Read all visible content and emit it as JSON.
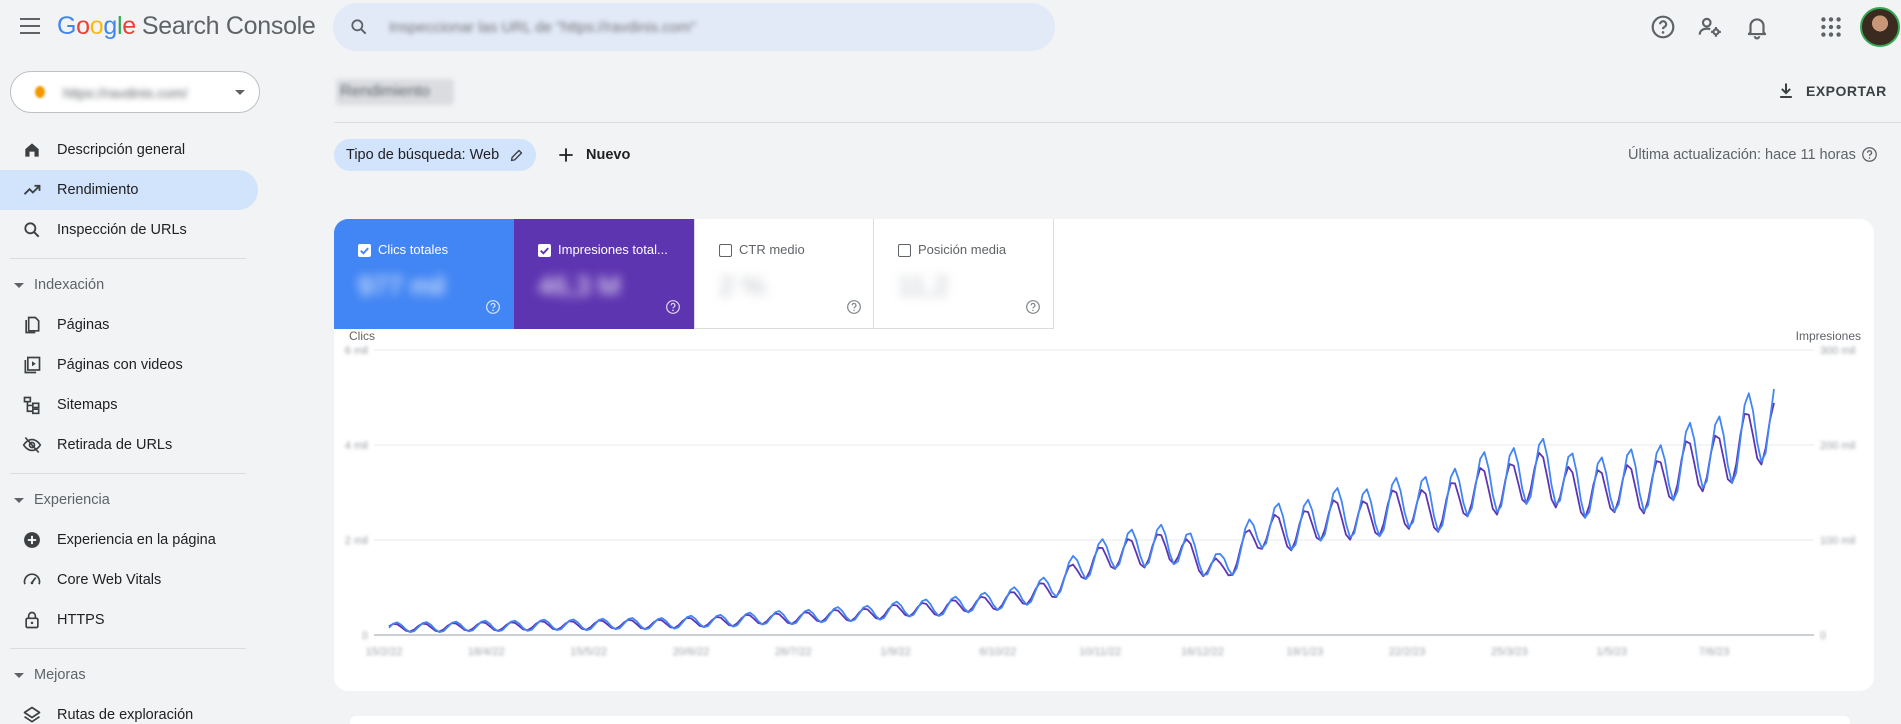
{
  "app": {
    "brand_letters": [
      "G",
      "o",
      "o",
      "g",
      "l",
      "e"
    ],
    "brand_rest": "Search Console"
  },
  "search": {
    "placeholder": "Inspeccionar las URL de \"https://ravdinis.com\""
  },
  "property": {
    "label": "https://ravdinis.com/"
  },
  "nav": {
    "overview": "Descripción general",
    "performance": "Rendimiento",
    "url_inspection": "Inspección de URLs",
    "indexing_section": "Indexación",
    "pages": "Páginas",
    "video_pages": "Páginas con videos",
    "sitemaps": "Sitemaps",
    "removals": "Retirada de URLs",
    "experience_section": "Experiencia",
    "page_experience": "Experiencia en la página",
    "core_web_vitals": "Core Web Vitals",
    "https": "HTTPS",
    "enhancements_section": "Mejoras",
    "breadcrumbs": "Rutas de exploración"
  },
  "header": {
    "page_title": "Rendimiento",
    "export_label": "EXPORTAR",
    "search_type_chip": "Tipo de búsqueda: Web",
    "new_label": "Nuevo",
    "last_updated": "Última actualización: hace 11 horas"
  },
  "metrics": {
    "clicks": {
      "label": "Clics totales",
      "value": "977 mil",
      "checked": true,
      "color": "#4285f4"
    },
    "impressions": {
      "label": "Impresiones total...",
      "value": "46,3 M",
      "checked": true,
      "color": "#5e35b1"
    },
    "ctr": {
      "label": "CTR medio",
      "value": "2 %",
      "checked": false
    },
    "position": {
      "label": "Posición media",
      "value": "11,2",
      "checked": false
    }
  },
  "chart_data": {
    "type": "line",
    "left_axis_title": "Clics",
    "right_axis_title": "Impresiones",
    "left_ticks": [
      "0",
      "2 mil",
      "4 mil",
      "6 mil"
    ],
    "right_ticks": [
      "0",
      "100 mil",
      "200 mil",
      "300 mil"
    ],
    "x_ticks": [
      "15/2/22",
      "18/4/22",
      "15/5/22",
      "20/6/22",
      "26/7/22",
      "1/9/22",
      "6/10/22",
      "10/11/22",
      "16/12/22",
      "19/1/23",
      "22/2/23",
      "25/3/23",
      "1/5/23",
      "7/6/23"
    ],
    "series": [
      {
        "name": "Clics totales",
        "color": "#4285f4"
      },
      {
        "name": "Impresiones totales",
        "color": "#5e35b1"
      }
    ]
  }
}
